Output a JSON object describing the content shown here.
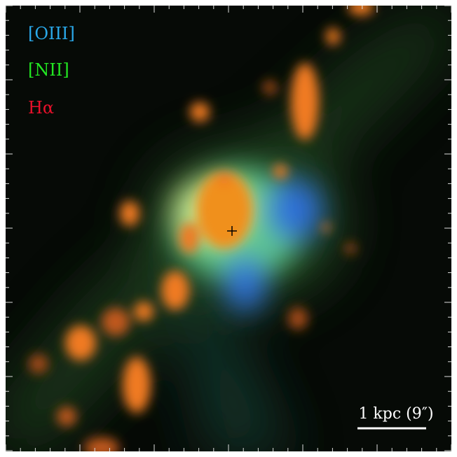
{
  "legend": {
    "items": [
      {
        "label": "[OIII]",
        "color": "#2aa8e8"
      },
      {
        "label": "[NII]",
        "color": "#22e622"
      },
      {
        "label": "Hα",
        "color": "#e8102a"
      }
    ]
  },
  "scale_bar": {
    "label": "1 kpc (9″)"
  }
}
